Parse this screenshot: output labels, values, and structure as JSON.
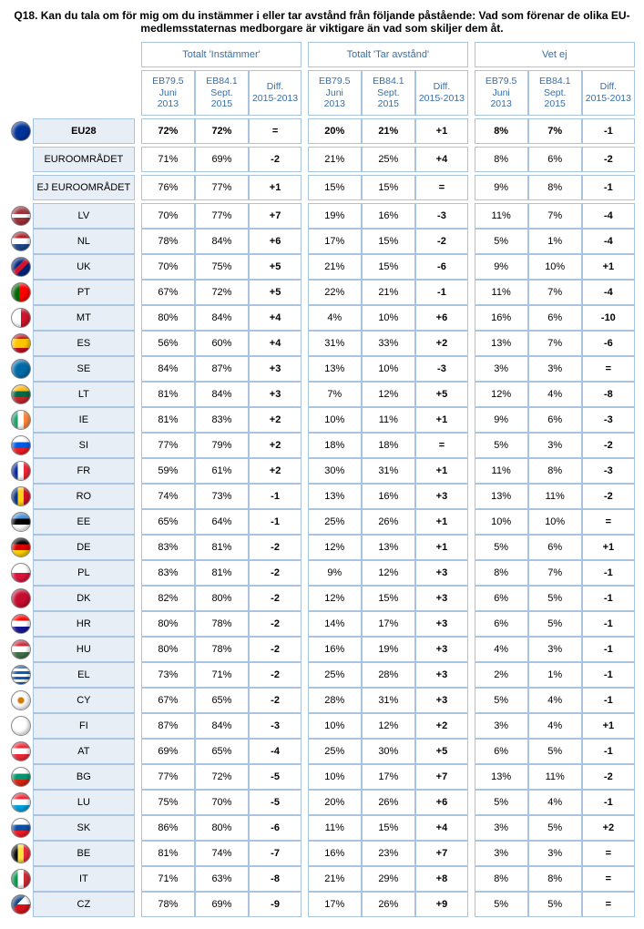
{
  "title": "Q18. Kan du tala om för mig om du instämmer i eller tar avstånd från följande påstående: Vad som förenar de olika EU-medlemsstaternas medborgare är viktigare än vad som skiljer dem åt.",
  "groups": [
    "Totalt 'Instämmer'",
    "Totalt 'Tar avstånd'",
    "Vet ej"
  ],
  "subcols": [
    "EB79.5 Juni 2013",
    "EB84.1 Sept. 2015",
    "Diff. 2015-2013"
  ],
  "sections": [
    {
      "rows": [
        {
          "flag": "eu",
          "label": "EU28",
          "bold": true,
          "v": [
            "72%",
            "72%",
            "=",
            "20%",
            "21%",
            "+1",
            "8%",
            "7%",
            "-1"
          ]
        }
      ]
    },
    {
      "rows": [
        {
          "flag": "",
          "label": "EUROOMRÅDET",
          "v": [
            "71%",
            "69%",
            "-2",
            "21%",
            "25%",
            "+4",
            "8%",
            "6%",
            "-2"
          ]
        }
      ]
    },
    {
      "rows": [
        {
          "flag": "",
          "label": "EJ EUROOMRÅDET",
          "v": [
            "76%",
            "77%",
            "+1",
            "15%",
            "15%",
            "=",
            "9%",
            "8%",
            "-1"
          ]
        }
      ]
    },
    {
      "rows": [
        {
          "flag": "lv",
          "label": "LV",
          "v": [
            "70%",
            "77%",
            "+7",
            "19%",
            "16%",
            "-3",
            "11%",
            "7%",
            "-4"
          ]
        },
        {
          "flag": "nl",
          "label": "NL",
          "v": [
            "78%",
            "84%",
            "+6",
            "17%",
            "15%",
            "-2",
            "5%",
            "1%",
            "-4"
          ]
        },
        {
          "flag": "uk",
          "label": "UK",
          "v": [
            "70%",
            "75%",
            "+5",
            "21%",
            "15%",
            "-6",
            "9%",
            "10%",
            "+1"
          ]
        },
        {
          "flag": "pt",
          "label": "PT",
          "v": [
            "67%",
            "72%",
            "+5",
            "22%",
            "21%",
            "-1",
            "11%",
            "7%",
            "-4"
          ]
        },
        {
          "flag": "mt",
          "label": "MT",
          "v": [
            "80%",
            "84%",
            "+4",
            "4%",
            "10%",
            "+6",
            "16%",
            "6%",
            "-10"
          ]
        },
        {
          "flag": "es",
          "label": "ES",
          "v": [
            "56%",
            "60%",
            "+4",
            "31%",
            "33%",
            "+2",
            "13%",
            "7%",
            "-6"
          ]
        },
        {
          "flag": "se",
          "label": "SE",
          "v": [
            "84%",
            "87%",
            "+3",
            "13%",
            "10%",
            "-3",
            "3%",
            "3%",
            "="
          ]
        },
        {
          "flag": "lt",
          "label": "LT",
          "v": [
            "81%",
            "84%",
            "+3",
            "7%",
            "12%",
            "+5",
            "12%",
            "4%",
            "-8"
          ]
        },
        {
          "flag": "ie",
          "label": "IE",
          "v": [
            "81%",
            "83%",
            "+2",
            "10%",
            "11%",
            "+1",
            "9%",
            "6%",
            "-3"
          ]
        },
        {
          "flag": "si",
          "label": "SI",
          "v": [
            "77%",
            "79%",
            "+2",
            "18%",
            "18%",
            "=",
            "5%",
            "3%",
            "-2"
          ]
        },
        {
          "flag": "fr",
          "label": "FR",
          "v": [
            "59%",
            "61%",
            "+2",
            "30%",
            "31%",
            "+1",
            "11%",
            "8%",
            "-3"
          ]
        },
        {
          "flag": "ro",
          "label": "RO",
          "v": [
            "74%",
            "73%",
            "-1",
            "13%",
            "16%",
            "+3",
            "13%",
            "11%",
            "-2"
          ]
        },
        {
          "flag": "ee",
          "label": "EE",
          "v": [
            "65%",
            "64%",
            "-1",
            "25%",
            "26%",
            "+1",
            "10%",
            "10%",
            "="
          ]
        },
        {
          "flag": "de",
          "label": "DE",
          "v": [
            "83%",
            "81%",
            "-2",
            "12%",
            "13%",
            "+1",
            "5%",
            "6%",
            "+1"
          ]
        },
        {
          "flag": "pl",
          "label": "PL",
          "v": [
            "83%",
            "81%",
            "-2",
            "9%",
            "12%",
            "+3",
            "8%",
            "7%",
            "-1"
          ]
        },
        {
          "flag": "dk",
          "label": "DK",
          "v": [
            "82%",
            "80%",
            "-2",
            "12%",
            "15%",
            "+3",
            "6%",
            "5%",
            "-1"
          ]
        },
        {
          "flag": "hr",
          "label": "HR",
          "v": [
            "80%",
            "78%",
            "-2",
            "14%",
            "17%",
            "+3",
            "6%",
            "5%",
            "-1"
          ]
        },
        {
          "flag": "hu",
          "label": "HU",
          "v": [
            "80%",
            "78%",
            "-2",
            "16%",
            "19%",
            "+3",
            "4%",
            "3%",
            "-1"
          ]
        },
        {
          "flag": "el",
          "label": "EL",
          "v": [
            "73%",
            "71%",
            "-2",
            "25%",
            "28%",
            "+3",
            "2%",
            "1%",
            "-1"
          ]
        },
        {
          "flag": "cy",
          "label": "CY",
          "v": [
            "67%",
            "65%",
            "-2",
            "28%",
            "31%",
            "+3",
            "5%",
            "4%",
            "-1"
          ]
        },
        {
          "flag": "fi",
          "label": "FI",
          "v": [
            "87%",
            "84%",
            "-3",
            "10%",
            "12%",
            "+2",
            "3%",
            "4%",
            "+1"
          ]
        },
        {
          "flag": "at",
          "label": "AT",
          "v": [
            "69%",
            "65%",
            "-4",
            "25%",
            "30%",
            "+5",
            "6%",
            "5%",
            "-1"
          ]
        },
        {
          "flag": "bg",
          "label": "BG",
          "v": [
            "77%",
            "72%",
            "-5",
            "10%",
            "17%",
            "+7",
            "13%",
            "11%",
            "-2"
          ]
        },
        {
          "flag": "lu",
          "label": "LU",
          "v": [
            "75%",
            "70%",
            "-5",
            "20%",
            "26%",
            "+6",
            "5%",
            "4%",
            "-1"
          ]
        },
        {
          "flag": "sk",
          "label": "SK",
          "v": [
            "86%",
            "80%",
            "-6",
            "11%",
            "15%",
            "+4",
            "3%",
            "5%",
            "+2"
          ]
        },
        {
          "flag": "be",
          "label": "BE",
          "v": [
            "81%",
            "74%",
            "-7",
            "16%",
            "23%",
            "+7",
            "3%",
            "3%",
            "="
          ]
        },
        {
          "flag": "it",
          "label": "IT",
          "v": [
            "71%",
            "63%",
            "-8",
            "21%",
            "29%",
            "+8",
            "8%",
            "8%",
            "="
          ]
        },
        {
          "flag": "cz",
          "label": "CZ",
          "v": [
            "78%",
            "69%",
            "-9",
            "17%",
            "26%",
            "+9",
            "5%",
            "5%",
            "="
          ]
        }
      ]
    }
  ],
  "flags": {
    "eu": "radial-gradient(circle,#003399 60%,#003399)",
    "lv": "linear-gradient(#9e3039 40%,#fff 40%,#fff 60%,#9e3039 60%)",
    "nl": "linear-gradient(#ae1c28 33%,#fff 33%,#fff 66%,#21468b 66%)",
    "uk": "linear-gradient(135deg,#00247d 40%,#cf142b 40%,#cf142b 60%,#00247d 60%)",
    "pt": "linear-gradient(90deg,#006600 40%,#ff0000 40%)",
    "mt": "linear-gradient(90deg,#fff 50%,#cf142b 50%)",
    "es": "linear-gradient(#c60b1e 25%,#ffc400 25%,#ffc400 75%,#c60b1e 75%)",
    "se": "linear-gradient(#006aa7,#006aa7),linear-gradient(#fecc00,#fecc00)",
    "lt": "linear-gradient(#fdb913 33%,#006a44 33%,#006a44 66%,#c1272d 66%)",
    "ie": "linear-gradient(90deg,#169b62 33%,#fff 33%,#fff 66%,#ff883e 66%)",
    "si": "linear-gradient(#fff 33%,#005ce5 33%,#005ce5 66%,#ed1c24 66%)",
    "fr": "linear-gradient(90deg,#002395 33%,#fff 33%,#fff 66%,#ed2939 66%)",
    "ro": "linear-gradient(90deg,#002b7f 33%,#fcd116 33%,#fcd116 66%,#ce1126 66%)",
    "ee": "linear-gradient(#4891d9 33%,#000 33%,#000 66%,#fff 66%)",
    "de": "linear-gradient(#000 33%,#dd0000 33%,#dd0000 66%,#ffce00 66%)",
    "pl": "linear-gradient(#fff 50%,#dc143c 50%)",
    "dk": "linear-gradient(#c60c30,#c60c30)",
    "hr": "linear-gradient(#ff0000 33%,#fff 33%,#fff 66%,#171796 66%)",
    "hu": "linear-gradient(#cd2a3e 33%,#fff 33%,#fff 66%,#436f4d 66%)",
    "el": "repeating-linear-gradient(#0d5eaf 0 3px,#fff 3px 6px)",
    "cy": "radial-gradient(circle,#d57800 20%,#fff 30%)",
    "fi": "linear-gradient(#fff,#fff)",
    "at": "linear-gradient(#ed2939 33%,#fff 33%,#fff 66%,#ed2939 66%)",
    "bg": "linear-gradient(#fff 33%,#00966e 33%,#00966e 66%,#d62612 66%)",
    "lu": "linear-gradient(#ed2939 33%,#fff 33%,#fff 66%,#00a1de 66%)",
    "sk": "linear-gradient(#fff 33%,#0b4ea2 33%,#0b4ea2 66%,#ee1c25 66%)",
    "be": "linear-gradient(90deg,#000 33%,#fae042 33%,#fae042 66%,#ed2939 66%)",
    "it": "linear-gradient(90deg,#009246 33%,#fff 33%,#fff 66%,#ce2b37 66%)",
    "cz": "linear-gradient(135deg,#11457e 40%,transparent 40%),linear-gradient(#fff 50%,#d7141a 50%)"
  }
}
